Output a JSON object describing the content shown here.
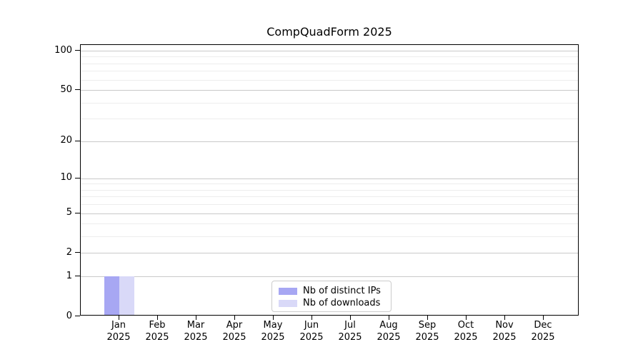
{
  "chart_data": {
    "type": "bar",
    "title": "CompQuadForm 2025",
    "categories": [
      {
        "month": "Jan",
        "year": "2025"
      },
      {
        "month": "Feb",
        "year": "2025"
      },
      {
        "month": "Mar",
        "year": "2025"
      },
      {
        "month": "Apr",
        "year": "2025"
      },
      {
        "month": "May",
        "year": "2025"
      },
      {
        "month": "Jun",
        "year": "2025"
      },
      {
        "month": "Jul",
        "year": "2025"
      },
      {
        "month": "Aug",
        "year": "2025"
      },
      {
        "month": "Sep",
        "year": "2025"
      },
      {
        "month": "Oct",
        "year": "2025"
      },
      {
        "month": "Nov",
        "year": "2025"
      },
      {
        "month": "Dec",
        "year": "2025"
      }
    ],
    "series": [
      {
        "name": "Nb of distinct IPs",
        "color": "#a7a7f3",
        "values": [
          1,
          0,
          0,
          0,
          0,
          0,
          0,
          0,
          0,
          0,
          0,
          0
        ]
      },
      {
        "name": "Nb of downloads",
        "color": "#d9d9f8",
        "values": [
          1,
          0,
          0,
          0,
          0,
          0,
          0,
          0,
          0,
          0,
          0,
          0
        ]
      }
    ],
    "y_scale": "log1p",
    "y_ticks": [
      0,
      1,
      2,
      5,
      10,
      20,
      50,
      100
    ],
    "y_minor_ticks": [
      3,
      4,
      6,
      7,
      8,
      9,
      30,
      40,
      60,
      70,
      80,
      90
    ],
    "ylim": [
      0,
      100
    ],
    "grid": true,
    "legend_position": "lower-center-inside",
    "colors": {
      "grid_major": "#c9c9c9",
      "grid_minor": "#ededed",
      "axis": "#000000",
      "legend_border": "#cccccc",
      "background": "#ffffff"
    }
  }
}
